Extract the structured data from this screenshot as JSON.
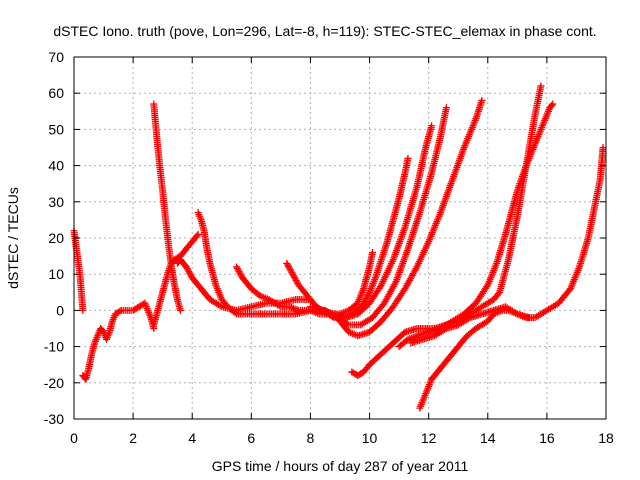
{
  "chart_data": {
    "type": "scatter",
    "title": "dSTEC Iono. truth (pove, Lon=296, Lat=-8, h=119): STEC-STEC_elemax in phase cont.",
    "xlabel": "GPS time / hours of day 287 of year 2011",
    "ylabel": "dSTEC  / TECUs",
    "xlim": [
      0,
      18
    ],
    "ylim": [
      -30,
      70
    ],
    "xticks": [
      0,
      2,
      4,
      6,
      8,
      10,
      12,
      14,
      16,
      18
    ],
    "yticks": [
      -30,
      -20,
      -10,
      0,
      10,
      20,
      30,
      40,
      50,
      60,
      70
    ],
    "grid": true,
    "marker": "plus",
    "color": "#ff0000",
    "series": [
      {
        "x": [
          0.0,
          0.1,
          0.2,
          0.3
        ],
        "y": [
          22,
          16,
          10,
          0
        ]
      },
      {
        "x": [
          0.3,
          0.4,
          0.5,
          0.6,
          0.7,
          0.8,
          0.9,
          1.0,
          1.1,
          1.2,
          1.3,
          1.4,
          1.6,
          1.8,
          2.0,
          2.2,
          2.4,
          2.6,
          2.7
        ],
        "y": [
          -18,
          -19,
          -16,
          -12,
          -9,
          -7,
          -5,
          -6,
          -8,
          -6,
          -3,
          -1,
          0,
          0,
          0,
          1,
          2,
          -2,
          -5
        ]
      },
      {
        "x": [
          2.7,
          2.8,
          2.9,
          3.0,
          3.1,
          3.2,
          3.3,
          3.4,
          3.5,
          3.6
        ],
        "y": [
          57,
          48,
          40,
          33,
          25,
          18,
          12,
          7,
          3,
          0
        ]
      },
      {
        "x": [
          2.7,
          2.8,
          2.9,
          3.0,
          3.1,
          3.2,
          3.3,
          3.4,
          3.6,
          3.8,
          4.0,
          4.2
        ],
        "y": [
          -4,
          -1,
          2,
          5,
          8,
          11,
          13,
          14,
          15,
          17,
          19,
          21
        ]
      },
      {
        "x": [
          3.5,
          3.6,
          3.7,
          3.8,
          4.0,
          4.3,
          4.6,
          5.0,
          5.5,
          6.0,
          6.5,
          7.0,
          7.5,
          8.0
        ],
        "y": [
          13,
          14,
          13,
          12,
          9,
          6,
          3,
          1,
          0,
          1,
          2,
          2,
          3,
          3
        ]
      },
      {
        "x": [
          4.2,
          4.3,
          4.4,
          4.5,
          4.6,
          4.8,
          5.0,
          5.2,
          5.5,
          6.0,
          6.5,
          7.0,
          7.5,
          8.0,
          8.5
        ],
        "y": [
          27,
          25,
          22,
          17,
          13,
          7,
          3,
          1,
          -1,
          -1,
          -1,
          -1,
          -1,
          0,
          0
        ]
      },
      {
        "x": [
          5.5,
          5.7,
          6.0,
          6.3,
          6.6,
          7.0,
          7.3,
          7.6,
          8.0,
          8.3,
          8.6,
          9.0,
          9.3,
          9.6,
          9.8,
          10.0,
          10.1
        ],
        "y": [
          12,
          9,
          6,
          4,
          3,
          1,
          1,
          0,
          0,
          -1,
          -1,
          -1,
          0,
          2,
          6,
          12,
          16
        ]
      },
      {
        "x": [
          7.2,
          7.4,
          7.6,
          7.8,
          8.0,
          8.2,
          8.4,
          8.6,
          8.8,
          9.0,
          9.2,
          9.4,
          9.6,
          9.8,
          10.0,
          10.2,
          10.4,
          10.6,
          10.8,
          11.0,
          11.2,
          11.3
        ],
        "y": [
          13,
          10,
          7,
          5,
          3,
          1,
          0,
          -1,
          -2,
          -2,
          -2,
          -1,
          0,
          2,
          5,
          9,
          14,
          19,
          25,
          31,
          38,
          42
        ]
      },
      {
        "x": [
          8.0,
          8.4,
          8.8,
          9.2,
          9.6,
          10.0,
          10.4,
          10.8,
          11.2,
          11.6,
          11.9,
          12.1
        ],
        "y": [
          1,
          0,
          -1,
          -2,
          -1,
          2,
          7,
          14,
          23,
          34,
          45,
          51
        ]
      },
      {
        "x": [
          8.5,
          8.9,
          9.3,
          9.7,
          10.1,
          10.5,
          10.9,
          11.3,
          11.7,
          12.1,
          12.4,
          12.6
        ],
        "y": [
          0,
          -2,
          -4,
          -4,
          -2,
          2,
          8,
          17,
          27,
          38,
          48,
          56
        ]
      },
      {
        "x": [
          9.0,
          9.3,
          9.6,
          10.0,
          10.4,
          10.8,
          11.2,
          11.6,
          12.0,
          12.4,
          12.8,
          13.2,
          13.6,
          13.8
        ],
        "y": [
          -3,
          -6,
          -7,
          -6,
          -3,
          1,
          6,
          12,
          19,
          27,
          36,
          45,
          53,
          58
        ]
      },
      {
        "x": [
          9.4,
          9.6,
          9.8,
          10.0,
          10.4,
          10.8,
          11.2,
          11.6,
          11.9,
          12.2,
          12.6,
          13.0,
          13.4,
          13.8,
          14.2,
          14.4,
          14.7,
          15.0,
          15.3,
          15.6,
          15.8
        ],
        "y": [
          -17,
          -18,
          -17,
          -15,
          -12,
          -9,
          -6,
          -5,
          -5,
          -5,
          -4,
          -3,
          -1,
          1,
          3,
          5,
          14,
          26,
          40,
          54,
          62
        ]
      },
      {
        "x": [
          11.0,
          11.3,
          11.6,
          12.0,
          12.4,
          12.8,
          13.2,
          13.6,
          14.0,
          14.3,
          14.6,
          14.8,
          15.0,
          15.3,
          15.6,
          15.9,
          16.1,
          16.2
        ],
        "y": [
          -10,
          -8,
          -7,
          -6,
          -5,
          -3,
          -1,
          2,
          7,
          13,
          21,
          27,
          33,
          40,
          46,
          52,
          56,
          57
        ]
      },
      {
        "x": [
          11.4,
          11.8,
          12.2,
          12.6,
          13.0,
          13.4,
          13.8,
          14.2,
          14.6,
          15.0,
          15.4
        ],
        "y": [
          -9,
          -8,
          -7,
          -5,
          -4,
          -2,
          -1,
          0,
          1,
          -1,
          -2
        ]
      },
      {
        "x": [
          11.7,
          11.9,
          12.1,
          12.4,
          12.7,
          13.0,
          13.3,
          13.6,
          14.0,
          14.2,
          14.5,
          14.7,
          15.0,
          15.3,
          15.6,
          16.0,
          16.4,
          16.8,
          17.1,
          17.4,
          17.6,
          17.8,
          17.9
        ],
        "y": [
          -27,
          -23,
          -19,
          -16,
          -13,
          -10,
          -7,
          -5,
          -3,
          -1,
          0,
          0,
          -1,
          -2,
          -2,
          0,
          2,
          6,
          12,
          20,
          28,
          36,
          45
        ]
      }
    ]
  }
}
